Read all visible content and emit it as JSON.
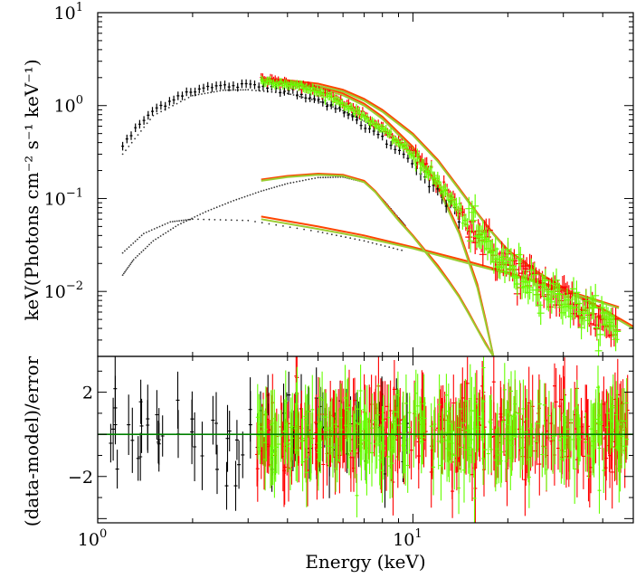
{
  "chart_data": [
    {
      "type": "scatter",
      "panel": "spectrum",
      "ylabel": "keV(Photons cm⁻² s⁻¹ keV⁻¹)",
      "xscale": "log",
      "yscale": "log",
      "xlim": [
        1.0,
        50.0
      ],
      "ylim": [
        0.002,
        10.0
      ],
      "y_ticks": [
        {
          "value": 10.0,
          "base": "10",
          "exp": "1"
        },
        {
          "value": 1.0,
          "base": "10",
          "exp": "0"
        },
        {
          "value": 0.1,
          "base": "10",
          "exp": "−1"
        },
        {
          "value": 0.01,
          "base": "10",
          "exp": "−2"
        }
      ],
      "colors": {
        "black": "#000000",
        "red": "#ff0000",
        "green": "#66ff00",
        "model_red": "#ff4500",
        "model_olive": "#9acd32"
      },
      "series": [
        {
          "color": "black",
          "kind": "data",
          "x": [
            1.2,
            1.3,
            1.4,
            1.5,
            1.7,
            1.9,
            2.1,
            2.4,
            2.7,
            3.0,
            3.3,
            3.7,
            4.2,
            4.8,
            5.5,
            6.5,
            7.5,
            8.5,
            9.5,
            11,
            12,
            13,
            14
          ],
          "y": [
            0.37,
            0.52,
            0.7,
            0.88,
            1.15,
            1.38,
            1.52,
            1.6,
            1.64,
            1.64,
            1.6,
            1.55,
            1.42,
            1.22,
            1.0,
            0.72,
            0.52,
            0.38,
            0.28,
            0.18,
            0.12,
            0.085,
            0.06
          ]
        },
        {
          "color": "red",
          "kind": "data",
          "x": [
            3.3,
            3.7,
            4.2,
            4.8,
            5.5,
            6.5,
            7.5,
            8.5,
            9.5,
            11,
            12,
            13,
            14,
            15,
            16,
            17,
            18,
            20,
            22,
            25,
            28,
            32,
            36,
            40,
            45
          ],
          "y": [
            1.9,
            1.82,
            1.7,
            1.5,
            1.25,
            0.92,
            0.66,
            0.48,
            0.35,
            0.22,
            0.15,
            0.105,
            0.075,
            0.055,
            0.042,
            0.033,
            0.026,
            0.019,
            0.015,
            0.012,
            0.0095,
            0.0075,
            0.006,
            0.0048,
            0.0038
          ]
        },
        {
          "color": "green",
          "kind": "data",
          "x": [
            3.3,
            3.7,
            4.2,
            4.8,
            5.5,
            6.5,
            7.5,
            8.5,
            9.5,
            11,
            12,
            13,
            14,
            15,
            16,
            17,
            18,
            20,
            22,
            25,
            28,
            32,
            36,
            40,
            45
          ],
          "y": [
            1.85,
            1.78,
            1.66,
            1.47,
            1.22,
            0.9,
            0.65,
            0.47,
            0.34,
            0.215,
            0.148,
            0.103,
            0.074,
            0.054,
            0.041,
            0.032,
            0.025,
            0.019,
            0.015,
            0.0118,
            0.0093,
            0.0073,
            0.0059,
            0.0047,
            0.0037
          ]
        },
        {
          "color": "black",
          "kind": "model-total",
          "x": [
            1.2,
            1.5,
            2.0,
            2.5,
            3.0,
            4.0,
            5.0,
            6.0,
            7.0,
            8.0,
            9.5
          ],
          "y": [
            0.3,
            0.78,
            1.28,
            1.46,
            1.48,
            1.35,
            1.12,
            0.88,
            0.68,
            0.52,
            0.36
          ]
        },
        {
          "color": "black",
          "kind": "model-line-component",
          "x": [
            1.2,
            1.3,
            1.5,
            1.8,
            2.2,
            2.7,
            3.3,
            4.0,
            5.0,
            6.0,
            7.0,
            7.6,
            8.2,
            9.0,
            9.5
          ],
          "y": [
            0.015,
            0.022,
            0.035,
            0.052,
            0.072,
            0.095,
            0.12,
            0.145,
            0.168,
            0.17,
            0.15,
            0.118,
            0.09,
            0.062,
            0.05
          ]
        },
        {
          "color": "black",
          "kind": "model-powerlaw-component",
          "x": [
            1.2,
            1.4,
            1.7,
            2.0,
            3.0,
            5.0,
            7.0,
            9.5
          ],
          "y": [
            0.026,
            0.042,
            0.056,
            0.06,
            0.058,
            0.044,
            0.035,
            0.027
          ]
        },
        {
          "color": "model_red",
          "kind": "model-total",
          "x": [
            3.3,
            4.0,
            5.0,
            6.0,
            7.0,
            8.0,
            10,
            12,
            14,
            16,
            18,
            20,
            25,
            30,
            40,
            50
          ],
          "y": [
            1.95,
            1.88,
            1.72,
            1.48,
            1.18,
            0.9,
            0.5,
            0.26,
            0.13,
            0.07,
            0.042,
            0.028,
            0.016,
            0.011,
            0.0065,
            0.0042
          ]
        },
        {
          "color": "model_red",
          "kind": "model-disk-component",
          "x": [
            3.3,
            4.0,
            5.0,
            6.0,
            7.0,
            8.0,
            10,
            12,
            14,
            16,
            17,
            18
          ],
          "y": [
            1.92,
            1.82,
            1.62,
            1.35,
            1.05,
            0.76,
            0.36,
            0.14,
            0.045,
            0.012,
            0.005,
            0.002
          ]
        },
        {
          "color": "model_red",
          "kind": "model-line-component",
          "x": [
            3.3,
            4.0,
            5.0,
            6.0,
            7.0,
            7.6,
            8.2,
            9.0,
            10,
            11,
            12,
            13,
            14,
            15,
            16,
            17,
            18
          ],
          "y": [
            0.16,
            0.175,
            0.185,
            0.18,
            0.155,
            0.12,
            0.088,
            0.06,
            0.04,
            0.027,
            0.019,
            0.013,
            0.009,
            0.006,
            0.004,
            0.0028,
            0.002
          ]
        },
        {
          "color": "model_red",
          "kind": "model-powerlaw-component",
          "x": [
            3.3,
            5.0,
            7.0,
            10,
            15,
            20,
            30,
            45
          ],
          "y": [
            0.064,
            0.05,
            0.04,
            0.03,
            0.021,
            0.016,
            0.0105,
            0.0068
          ]
        },
        {
          "color": "model_olive",
          "kind": "model-total",
          "x": [
            3.3,
            4.0,
            5.0,
            6.0,
            7.0,
            8.0,
            10,
            12,
            14,
            16,
            18,
            20,
            25,
            30,
            40,
            50
          ],
          "y": [
            1.85,
            1.79,
            1.64,
            1.42,
            1.13,
            0.86,
            0.48,
            0.25,
            0.125,
            0.068,
            0.041,
            0.027,
            0.0155,
            0.0105,
            0.0062,
            0.004
          ]
        },
        {
          "color": "model_olive",
          "kind": "model-disk-component",
          "x": [
            3.3,
            4.0,
            5.0,
            6.0,
            7.0,
            8.0,
            10,
            12,
            14,
            16,
            17,
            18
          ],
          "y": [
            1.82,
            1.74,
            1.55,
            1.29,
            1.0,
            0.72,
            0.34,
            0.13,
            0.042,
            0.011,
            0.0047,
            0.002
          ]
        },
        {
          "color": "model_olive",
          "kind": "model-line-component",
          "x": [
            3.3,
            4.0,
            5.0,
            6.0,
            7.0,
            7.6,
            8.2,
            9.0,
            10,
            11,
            12,
            13,
            14,
            15,
            16,
            17,
            18
          ],
          "y": [
            0.155,
            0.17,
            0.18,
            0.175,
            0.15,
            0.117,
            0.085,
            0.058,
            0.039,
            0.026,
            0.018,
            0.0125,
            0.0087,
            0.0058,
            0.0039,
            0.0027,
            0.002
          ]
        },
        {
          "color": "model_olive",
          "kind": "model-powerlaw-component",
          "x": [
            3.3,
            5.0,
            7.0,
            10,
            15,
            20,
            30,
            45
          ],
          "y": [
            0.06,
            0.047,
            0.038,
            0.029,
            0.02,
            0.0155,
            0.0102,
            0.0066
          ]
        }
      ]
    },
    {
      "type": "scatter",
      "panel": "residuals",
      "xlabel": "Energy (keV)",
      "ylabel": "(data-model)/error",
      "xscale": "log",
      "xlim": [
        1.0,
        50.0
      ],
      "ylim": [
        -4.2,
        3.7
      ],
      "x_ticks": [
        {
          "value": 1.0,
          "base": "10",
          "exp": "0"
        },
        {
          "value": 10.0,
          "base": "10",
          "exp": "1"
        }
      ],
      "y_ticks": [
        {
          "value": 2,
          "label": "2"
        },
        {
          "value": -2,
          "label": "−2"
        }
      ],
      "zero_line_color": "green",
      "series": [
        {
          "color": "black",
          "x_range": [
            1.05,
            9.6
          ],
          "spread": 1.3
        },
        {
          "color": "red",
          "x_range": [
            3.2,
            48
          ],
          "spread": 1.4
        },
        {
          "color": "green",
          "x_range": [
            3.2,
            48
          ],
          "spread": 1.3
        }
      ]
    }
  ]
}
